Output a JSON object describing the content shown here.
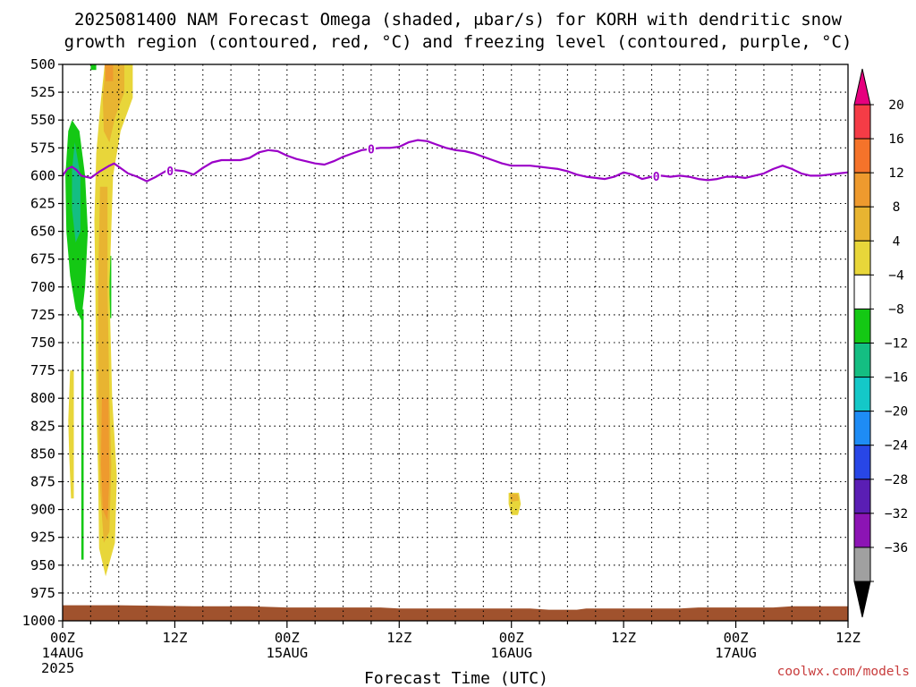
{
  "chart_data": {
    "type": "contour",
    "title": [
      "2025081400 NAM Forecast Omega (shaded, μbar/s) for KORH with dendritic snow",
      "growth region (contoured, red, °C) and freezing level (contoured, purple, °C)"
    ],
    "xlabel": "Forecast Time (UTC)",
    "x_ticks": [
      {
        "hour": 0,
        "label": "00Z",
        "sub": "14AUG",
        "sub2": "2025"
      },
      {
        "hour": 12,
        "label": "12Z",
        "sub": "",
        "sub2": ""
      },
      {
        "hour": 24,
        "label": "00Z",
        "sub": "15AUG",
        "sub2": ""
      },
      {
        "hour": 36,
        "label": "12Z",
        "sub": "",
        "sub2": ""
      },
      {
        "hour": 48,
        "label": "00Z",
        "sub": "16AUG",
        "sub2": ""
      },
      {
        "hour": 60,
        "label": "12Z",
        "sub": "",
        "sub2": ""
      },
      {
        "hour": 72,
        "label": "00Z",
        "sub": "17AUG",
        "sub2": ""
      },
      {
        "hour": 84,
        "label": "12Z",
        "sub": "",
        "sub2": ""
      }
    ],
    "xlim": [
      0,
      84
    ],
    "y_ticks": [
      500,
      525,
      550,
      575,
      600,
      625,
      650,
      675,
      700,
      725,
      750,
      775,
      800,
      825,
      850,
      875,
      900,
      925,
      950,
      975,
      1000
    ],
    "ylim": [
      500,
      1000
    ],
    "grid": true,
    "colorbar": {
      "labels": [
        "20",
        "16",
        "12",
        "8",
        "4",
        "−4",
        "−8",
        "−12",
        "−16",
        "−20",
        "−24",
        "−28",
        "−32",
        "−36"
      ],
      "top_color": "#e6007e",
      "bottom_color": "#000000",
      "colors": [
        "#f53c46",
        "#f5732a",
        "#ee9a2e",
        "#e8b431",
        "#e8d63a",
        "#ffffff",
        "#14c814",
        "#14be82",
        "#14c8c8",
        "#1e8cf5",
        "#2846e6",
        "#5a1eb4",
        "#8c14b4",
        "#a0a0a0"
      ]
    },
    "freezing_level": {
      "label": "0",
      "label_hours": [
        11.5,
        33,
        63.5
      ],
      "points": [
        [
          0,
          600
        ],
        [
          0.5,
          594
        ],
        [
          1,
          592
        ],
        [
          1.5,
          595
        ],
        [
          2,
          600
        ],
        [
          3,
          602
        ],
        [
          4,
          596
        ],
        [
          5,
          591
        ],
        [
          5.5,
          589
        ],
        [
          6,
          592
        ],
        [
          7,
          598
        ],
        [
          8,
          601
        ],
        [
          9,
          605
        ],
        [
          10,
          601
        ],
        [
          11,
          596
        ],
        [
          12,
          595
        ],
        [
          13,
          596
        ],
        [
          14,
          599
        ],
        [
          15,
          593
        ],
        [
          16,
          588
        ],
        [
          17,
          586
        ],
        [
          18,
          586
        ],
        [
          19,
          586
        ],
        [
          20,
          584
        ],
        [
          21,
          579
        ],
        [
          22,
          577
        ],
        [
          23,
          578
        ],
        [
          24,
          582
        ],
        [
          25,
          585
        ],
        [
          26,
          587
        ],
        [
          27,
          589
        ],
        [
          28,
          590
        ],
        [
          29,
          587
        ],
        [
          30,
          583
        ],
        [
          31,
          580
        ],
        [
          32,
          577
        ],
        [
          33,
          576
        ],
        [
          34,
          575
        ],
        [
          35,
          575
        ],
        [
          36,
          574
        ],
        [
          37,
          570
        ],
        [
          38,
          568
        ],
        [
          39,
          569
        ],
        [
          40,
          572
        ],
        [
          41,
          575
        ],
        [
          42,
          577
        ],
        [
          43,
          578
        ],
        [
          44,
          580
        ],
        [
          45,
          583
        ],
        [
          46,
          586
        ],
        [
          47,
          589
        ],
        [
          48,
          591
        ],
        [
          49,
          591
        ],
        [
          50,
          591
        ],
        [
          51,
          592
        ],
        [
          52,
          593
        ],
        [
          53,
          594
        ],
        [
          54,
          596
        ],
        [
          55,
          599
        ],
        [
          56,
          601
        ],
        [
          57,
          602
        ],
        [
          58,
          603
        ],
        [
          59,
          601
        ],
        [
          60,
          597
        ],
        [
          61,
          599
        ],
        [
          62,
          603
        ],
        [
          63,
          601
        ],
        [
          64,
          600
        ],
        [
          65,
          601
        ],
        [
          66,
          600
        ],
        [
          67,
          601
        ],
        [
          68,
          603
        ],
        [
          69,
          604
        ],
        [
          70,
          603
        ],
        [
          71,
          601
        ],
        [
          72,
          601
        ],
        [
          73,
          602
        ],
        [
          74,
          600
        ],
        [
          75,
          598
        ],
        [
          76,
          594
        ],
        [
          77,
          591
        ],
        [
          78,
          594
        ],
        [
          79,
          598
        ],
        [
          80,
          600
        ],
        [
          81,
          600
        ],
        [
          82,
          599
        ],
        [
          83,
          598
        ],
        [
          84,
          597
        ]
      ]
    },
    "surface_pressure": [
      [
        0,
        986
      ],
      [
        6,
        986
      ],
      [
        14,
        987
      ],
      [
        20,
        987
      ],
      [
        24,
        988
      ],
      [
        34,
        988
      ],
      [
        36,
        989
      ],
      [
        50,
        989
      ],
      [
        52,
        990
      ],
      [
        55,
        990
      ],
      [
        56,
        989
      ],
      [
        66,
        989
      ],
      [
        68,
        988
      ],
      [
        76,
        988
      ],
      [
        78,
        987
      ],
      [
        84,
        987
      ]
    ],
    "omega_regions": [
      {
        "level": "-8",
        "color": "#14c814",
        "points": [
          [
            1.0,
            550
          ],
          [
            1.8,
            560
          ],
          [
            2.4,
            600
          ],
          [
            2.7,
            650
          ],
          [
            2.4,
            700
          ],
          [
            2.0,
            730
          ],
          [
            1.4,
            720
          ],
          [
            0.8,
            690
          ],
          [
            0.4,
            650
          ],
          [
            0.3,
            600
          ],
          [
            0.6,
            560
          ]
        ]
      },
      {
        "level": "-12",
        "color": "#14be82",
        "points": [
          [
            1.3,
            570
          ],
          [
            1.9,
            600
          ],
          [
            1.9,
            650
          ],
          [
            1.4,
            660
          ],
          [
            1.0,
            630
          ],
          [
            1.0,
            595
          ]
        ]
      },
      {
        "level": "-8",
        "color": "#14c814",
        "points": [
          [
            2.0,
            720
          ],
          [
            2.25,
            720
          ],
          [
            2.25,
            945
          ],
          [
            2.0,
            945
          ]
        ]
      },
      {
        "level": "-8",
        "color": "#14c814",
        "points": [
          [
            3.0,
            500
          ],
          [
            3.6,
            500
          ],
          [
            3.6,
            505
          ],
          [
            3.0,
            505
          ]
        ]
      },
      {
        "level": "-8",
        "color": "#14c814",
        "points": [
          [
            5.0,
            672
          ],
          [
            5.2,
            672
          ],
          [
            5.2,
            728
          ],
          [
            5.0,
            728
          ]
        ]
      },
      {
        "level": "4",
        "color": "#e8d63a",
        "points": [
          [
            4.5,
            500
          ],
          [
            7.5,
            500
          ],
          [
            7.5,
            530
          ],
          [
            6.2,
            560
          ],
          [
            5.4,
            600
          ],
          [
            5.0,
            700
          ],
          [
            5.3,
            800
          ],
          [
            5.8,
            870
          ],
          [
            5.6,
            930
          ],
          [
            4.6,
            960
          ],
          [
            3.9,
            935
          ],
          [
            3.8,
            870
          ],
          [
            3.6,
            800
          ],
          [
            3.5,
            700
          ],
          [
            3.4,
            640
          ],
          [
            3.6,
            580
          ],
          [
            4.0,
            540
          ]
        ]
      },
      {
        "level": "4",
        "color": "#e8d63a",
        "points": [
          [
            0.8,
            775
          ],
          [
            1.2,
            775
          ],
          [
            1.2,
            890
          ],
          [
            0.9,
            890
          ],
          [
            0.7,
            850
          ],
          [
            0.6,
            820
          ]
        ]
      },
      {
        "level": "8",
        "color": "#e8b431",
        "points": [
          [
            4.6,
            500
          ],
          [
            6.6,
            500
          ],
          [
            6.6,
            525
          ],
          [
            5.6,
            548
          ],
          [
            5.0,
            570
          ],
          [
            4.4,
            560
          ],
          [
            4.3,
            530
          ]
        ]
      },
      {
        "level": "8",
        "color": "#e8b431",
        "points": [
          [
            4.0,
            610
          ],
          [
            4.8,
            610
          ],
          [
            4.8,
            700
          ],
          [
            5.0,
            800
          ],
          [
            5.2,
            860
          ],
          [
            5.0,
            920
          ],
          [
            4.4,
            930
          ],
          [
            4.0,
            880
          ],
          [
            3.8,
            800
          ],
          [
            3.8,
            700
          ]
        ]
      },
      {
        "level": "12",
        "color": "#ee9a2e",
        "points": [
          [
            4.2,
            800
          ],
          [
            4.9,
            800
          ],
          [
            5.0,
            870
          ],
          [
            4.8,
            910
          ],
          [
            4.3,
            900
          ],
          [
            4.1,
            860
          ]
        ]
      },
      {
        "level": "12",
        "color": "#ee9a2e",
        "points": [
          [
            4.5,
            500
          ],
          [
            5.4,
            500
          ],
          [
            5.4,
            515
          ],
          [
            4.6,
            515
          ]
        ]
      },
      {
        "level": "4",
        "color": "#e8d63a",
        "points": [
          [
            47.7,
            885
          ],
          [
            48.8,
            885
          ],
          [
            49.0,
            895
          ],
          [
            48.7,
            905
          ],
          [
            48.0,
            905
          ],
          [
            47.7,
            895
          ]
        ]
      },
      {
        "level": "8",
        "color": "#e8b431",
        "points": [
          [
            47.8,
            886
          ],
          [
            48.7,
            886
          ],
          [
            48.8,
            892
          ],
          [
            48.0,
            893
          ]
        ]
      }
    ]
  },
  "credit": "coolwx.com/models"
}
